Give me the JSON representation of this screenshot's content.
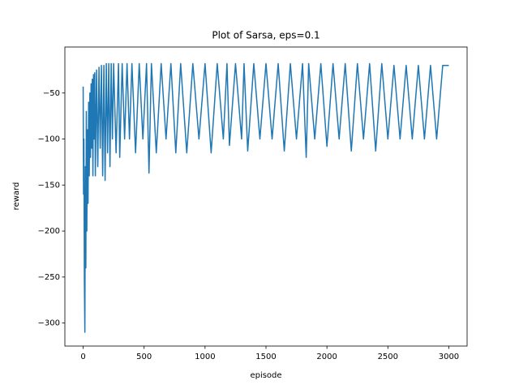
{
  "chart_data": {
    "type": "line",
    "title": "Plot of Sarsa, eps=0.1",
    "xlabel": "episode",
    "ylabel": "reward",
    "x": [
      0,
      3,
      6,
      10,
      14,
      18,
      22,
      26,
      30,
      35,
      40,
      45,
      50,
      55,
      60,
      65,
      70,
      75,
      80,
      85,
      90,
      95,
      100,
      110,
      120,
      130,
      140,
      150,
      160,
      170,
      180,
      190,
      200,
      210,
      220,
      230,
      240,
      250,
      270,
      290,
      300,
      320,
      340,
      360,
      380,
      400,
      430,
      460,
      490,
      520,
      540,
      560,
      600,
      640,
      680,
      720,
      760,
      800,
      850,
      900,
      950,
      1000,
      1050,
      1100,
      1150,
      1180,
      1200,
      1250,
      1300,
      1320,
      1350,
      1400,
      1450,
      1500,
      1550,
      1600,
      1650,
      1700,
      1750,
      1800,
      1830,
      1850,
      1900,
      1950,
      2000,
      2050,
      2100,
      2150,
      2200,
      2250,
      2300,
      2350,
      2400,
      2450,
      2500,
      2550,
      2600,
      2650,
      2700,
      2750,
      2800,
      2850,
      2900,
      2950,
      3000
    ],
    "series": [
      {
        "color": "#1f77b4",
        "values": [
          -43,
          -160,
          -100,
          -255,
          -310,
          -130,
          -240,
          -70,
          -200,
          -90,
          -170,
          -60,
          -140,
          -50,
          -120,
          -40,
          -110,
          -35,
          -140,
          -30,
          -100,
          -28,
          -140,
          -25,
          -130,
          -22,
          -110,
          -20,
          -140,
          -20,
          -145,
          -18,
          -115,
          -18,
          -130,
          -18,
          -100,
          -18,
          -115,
          -18,
          -120,
          -18,
          -100,
          -18,
          -100,
          -18,
          -115,
          -18,
          -100,
          -18,
          -137,
          -18,
          -115,
          -18,
          -100,
          -18,
          -115,
          -18,
          -115,
          -18,
          -100,
          -18,
          -115,
          -18,
          -100,
          -18,
          -107,
          -18,
          -100,
          -18,
          -113,
          -18,
          -100,
          -18,
          -100,
          -18,
          -113,
          -18,
          -100,
          -18,
          -120,
          -18,
          -100,
          -18,
          -108,
          -18,
          -100,
          -18,
          -113,
          -18,
          -100,
          -18,
          -113,
          -18,
          -100,
          -20,
          -100,
          -20,
          -100,
          -20,
          -100,
          -20,
          -100,
          -20,
          -20
        ]
      }
    ],
    "xlim": [
      -150,
      3150
    ],
    "ylim": [
      -325,
      0
    ],
    "xticks": [
      0,
      500,
      1000,
      1500,
      2000,
      2500,
      3000
    ],
    "yticks": [
      {
        "value": -300,
        "label": "−300"
      },
      {
        "value": -250,
        "label": "−250"
      },
      {
        "value": -200,
        "label": "−200"
      },
      {
        "value": -150,
        "label": "−150"
      },
      {
        "value": -100,
        "label": "−100"
      },
      {
        "value": -50,
        "label": "−50"
      }
    ]
  }
}
